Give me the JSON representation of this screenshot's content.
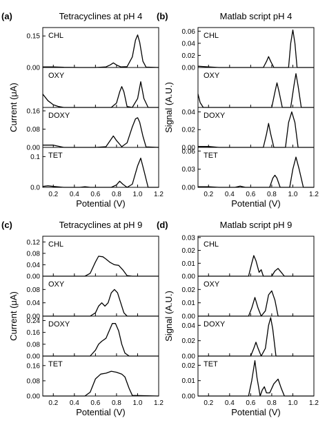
{
  "chart_data": [
    {
      "type": "line",
      "panel_letter": "(a)",
      "title": "Tetracyclines at pH 4",
      "xlabel": "Potential (V)",
      "ylabel": "Current (μA)",
      "xlim": [
        0.1,
        1.2
      ],
      "xticks": [
        "0.2",
        "0.4",
        "0.6",
        "0.8",
        "1.0",
        "1.2"
      ],
      "subplots": [
        {
          "label": "CHL",
          "ylim": [
            0,
            0.19
          ],
          "yticks": [
            "0.15",
            "0.00"
          ],
          "x": [
            0.1,
            0.2,
            0.3,
            0.45,
            0.6,
            0.7,
            0.74,
            0.77,
            0.8,
            0.84,
            0.9,
            0.95,
            0.98,
            1.0,
            1.02,
            1.05,
            1.08,
            1.2
          ],
          "y": [
            0.003,
            0.003,
            0.001,
            0.0,
            0.0,
            0.003,
            0.012,
            0.022,
            0.012,
            0.003,
            0.004,
            0.05,
            0.13,
            0.155,
            0.12,
            0.03,
            0.002,
            0.0
          ]
        },
        {
          "label": "OXY",
          "ylim": [
            0,
            0.09
          ],
          "yticks": [],
          "x": [
            0.1,
            0.15,
            0.2,
            0.25,
            0.3,
            0.5,
            0.75,
            0.8,
            0.83,
            0.85,
            0.87,
            0.9,
            0.95,
            1.0,
            1.03,
            1.06,
            1.1,
            1.2
          ],
          "y": [
            0.03,
            0.015,
            0.006,
            0.002,
            0.0,
            0.0,
            0.0,
            0.01,
            0.035,
            0.047,
            0.035,
            0.002,
            0.0,
            0.02,
            0.058,
            0.02,
            0.0,
            0.0
          ]
        },
        {
          "label": "DOXY",
          "ylim": [
            0,
            0.175
          ],
          "yticks": [
            "0.16",
            "0.08",
            "0.00"
          ],
          "x": [
            0.1,
            0.2,
            0.3,
            0.6,
            0.7,
            0.74,
            0.77,
            0.8,
            0.85,
            0.9,
            0.95,
            0.98,
            1.0,
            1.02,
            1.05,
            1.08,
            1.2
          ],
          "y": [
            0.01,
            0.01,
            0.0,
            0.0,
            0.003,
            0.03,
            0.05,
            0.03,
            0.003,
            0.02,
            0.09,
            0.125,
            0.13,
            0.11,
            0.05,
            0.002,
            0.0
          ]
        },
        {
          "label": "TET",
          "ylim": [
            0,
            0.13
          ],
          "yticks": [
            "0.1",
            "0.0"
          ],
          "x": [
            0.1,
            0.15,
            0.2,
            0.3,
            0.45,
            0.5,
            0.55,
            0.6,
            0.75,
            0.8,
            0.83,
            0.86,
            0.9,
            0.95,
            1.0,
            1.03,
            1.06,
            1.1,
            1.2
          ],
          "y": [
            0.003,
            0.005,
            0.003,
            0.0,
            0.0,
            0.002,
            0.0,
            0.0,
            0.0,
            0.008,
            0.02,
            0.01,
            0.0,
            0.01,
            0.07,
            0.095,
            0.055,
            0.0,
            0.0
          ]
        }
      ]
    },
    {
      "type": "line",
      "panel_letter": "(b)",
      "title": "Matlab script pH 4",
      "xlabel": "Potential (V)",
      "ylabel": "Signal (A.U.)",
      "xlim": [
        0.1,
        1.2
      ],
      "xticks": [
        "0.2",
        "0.4",
        "0.6",
        "0.8",
        "1.0",
        "1.2"
      ],
      "subplots": [
        {
          "label": "CHL",
          "ylim": [
            0,
            0.066
          ],
          "yticks": [
            "0.06",
            "0.04",
            "0.02",
            "0.00"
          ],
          "x": [
            0.1,
            0.2,
            0.3,
            0.72,
            0.75,
            0.77,
            0.79,
            0.82,
            0.96,
            0.98,
            1.0,
            1.02,
            1.04,
            1.2
          ],
          "y": [
            0.002,
            0.001,
            0.0,
            0.0,
            0.01,
            0.018,
            0.01,
            0.0,
            0.0,
            0.04,
            0.062,
            0.04,
            0.0,
            0.0
          ]
        },
        {
          "label": "OXY",
          "ylim": [
            0,
            0.065
          ],
          "yticks": [],
          "x": [
            0.1,
            0.12,
            0.15,
            0.2,
            0.8,
            0.83,
            0.85,
            0.87,
            0.9,
            0.98,
            1.01,
            1.03,
            1.05,
            1.08,
            1.2
          ],
          "y": [
            0.022,
            0.008,
            0.0,
            0.0,
            0.0,
            0.025,
            0.04,
            0.025,
            0.0,
            0.0,
            0.035,
            0.055,
            0.035,
            0.0,
            0.0
          ]
        },
        {
          "label": "DOXY",
          "ylim": [
            0,
            0.045
          ],
          "yticks": [
            "0.04",
            "0.02",
            "0.00"
          ],
          "x": [
            0.1,
            0.2,
            0.3,
            0.72,
            0.75,
            0.77,
            0.79,
            0.82,
            0.93,
            0.96,
            0.99,
            1.02,
            1.05,
            1.2
          ],
          "y": [
            0.001,
            0.001,
            0.0,
            0.0,
            0.015,
            0.027,
            0.015,
            0.0,
            0.0,
            0.028,
            0.04,
            0.028,
            0.0,
            0.0
          ]
        },
        {
          "label": "TET",
          "ylim": [
            0,
            0.066
          ],
          "yticks": [
            "0.06",
            "0.03",
            "0.00"
          ],
          "x": [
            0.1,
            0.2,
            0.3,
            0.45,
            0.5,
            0.55,
            0.78,
            0.81,
            0.83,
            0.85,
            0.88,
            0.97,
            1.0,
            1.03,
            1.06,
            1.1,
            1.2
          ],
          "y": [
            0.001,
            0.001,
            0.0,
            0.0,
            0.002,
            0.0,
            0.0,
            0.015,
            0.02,
            0.015,
            0.0,
            0.0,
            0.03,
            0.05,
            0.03,
            0.0,
            0.0
          ]
        }
      ]
    },
    {
      "type": "line",
      "panel_letter": "(c)",
      "title": "Tetracyclines at pH 9",
      "xlabel": "Potential (V)",
      "ylabel": "Current (μA)",
      "xlim": [
        0.1,
        1.2
      ],
      "xticks": [
        "0.2",
        "0.4",
        "0.6",
        "0.8",
        "1.0",
        "1.2"
      ],
      "subplots": [
        {
          "label": "CHL",
          "ylim": [
            0,
            0.14
          ],
          "yticks": [
            "0.12",
            "0.08",
            "0.04",
            "0.00"
          ],
          "x": [
            0.1,
            0.5,
            0.55,
            0.6,
            0.63,
            0.67,
            0.7,
            0.74,
            0.78,
            0.82,
            0.86,
            0.9,
            0.95,
            1.2
          ],
          "y": [
            0.0,
            0.0,
            0.01,
            0.05,
            0.07,
            0.068,
            0.06,
            0.048,
            0.04,
            0.038,
            0.022,
            0.002,
            0.0,
            0.0
          ]
        },
        {
          "label": "OXY",
          "ylim": [
            0,
            0.12
          ],
          "yticks": [
            "0.08",
            "0.04",
            "0.00"
          ],
          "x": [
            0.1,
            0.55,
            0.6,
            0.63,
            0.66,
            0.69,
            0.72,
            0.75,
            0.78,
            0.81,
            0.84,
            0.87,
            0.9,
            1.2
          ],
          "y": [
            0.0,
            0.0,
            0.01,
            0.03,
            0.04,
            0.03,
            0.04,
            0.07,
            0.08,
            0.07,
            0.04,
            0.01,
            0.0,
            0.0
          ]
        },
        {
          "label": "DOXY",
          "ylim": [
            0,
            0.27
          ],
          "yticks": [
            "0.24",
            "0.16",
            "0.08",
            "0.00"
          ],
          "x": [
            0.1,
            0.55,
            0.6,
            0.63,
            0.66,
            0.7,
            0.73,
            0.76,
            0.79,
            0.82,
            0.85,
            0.88,
            0.92,
            1.2
          ],
          "y": [
            0.0,
            0.0,
            0.04,
            0.08,
            0.1,
            0.12,
            0.17,
            0.22,
            0.22,
            0.17,
            0.08,
            0.02,
            0.0,
            0.0
          ]
        },
        {
          "label": "TET",
          "ylim": [
            0,
            0.21
          ],
          "yticks": [
            "0.16",
            "0.08",
            "0.00"
          ],
          "x": [
            0.1,
            0.5,
            0.55,
            0.6,
            0.65,
            0.7,
            0.75,
            0.8,
            0.85,
            0.88,
            0.92,
            0.95,
            1.2
          ],
          "y": [
            0.0,
            0.0,
            0.02,
            0.09,
            0.115,
            0.12,
            0.13,
            0.125,
            0.115,
            0.1,
            0.04,
            0.003,
            0.0
          ]
        }
      ]
    },
    {
      "type": "line",
      "panel_letter": "(d)",
      "title": "Matlab script pH 9",
      "xlabel": "Potential (V)",
      "ylabel": "Signal (A.U.)",
      "xlim": [
        0.1,
        1.2
      ],
      "xticks": [
        "0.2",
        "0.4",
        "0.6",
        "0.8",
        "1.0",
        "1.2"
      ],
      "subplots": [
        {
          "label": "CHL",
          "ylim": [
            0,
            0.031
          ],
          "yticks": [
            "0.03",
            "0.02",
            "0.01",
            "0.00"
          ],
          "x": [
            0.1,
            0.58,
            0.61,
            0.63,
            0.65,
            0.68,
            0.7,
            0.72,
            0.75,
            0.8,
            0.83,
            0.86,
            0.89,
            0.92,
            1.2
          ],
          "y": [
            0.0,
            0.0,
            0.01,
            0.016,
            0.012,
            0.003,
            0.005,
            0.0,
            0.0,
            0.0,
            0.004,
            0.006,
            0.003,
            0.0,
            0.0
          ]
        },
        {
          "label": "OXY",
          "ylim": [
            0,
            0.03
          ],
          "yticks": [
            "0.02",
            "0.01",
            "0.00"
          ],
          "x": [
            0.1,
            0.58,
            0.61,
            0.64,
            0.67,
            0.7,
            0.74,
            0.77,
            0.8,
            0.83,
            0.86,
            1.2
          ],
          "y": [
            0.0,
            0.0,
            0.006,
            0.014,
            0.006,
            0.0,
            0.004,
            0.016,
            0.019,
            0.012,
            0.0,
            0.0
          ]
        },
        {
          "label": "DOXY",
          "ylim": [
            0,
            0.052
          ],
          "yticks": [
            "0.04",
            "0.02",
            "0.00"
          ],
          "x": [
            0.1,
            0.6,
            0.63,
            0.65,
            0.67,
            0.7,
            0.74,
            0.77,
            0.79,
            0.81,
            0.84,
            1.2
          ],
          "y": [
            0.0,
            0.0,
            0.01,
            0.018,
            0.01,
            0.0,
            0.01,
            0.04,
            0.05,
            0.035,
            0.0,
            0.0
          ]
        },
        {
          "label": "TET",
          "ylim": [
            0,
            0.026
          ],
          "yticks": [
            "0.02",
            "0.01",
            "0.00"
          ],
          "x": [
            0.1,
            0.58,
            0.61,
            0.64,
            0.66,
            0.69,
            0.71,
            0.73,
            0.75,
            0.78,
            0.82,
            0.86,
            0.89,
            0.92,
            1.2
          ],
          "y": [
            0.0,
            0.0,
            0.01,
            0.023,
            0.012,
            0.0,
            0.004,
            0.006,
            0.002,
            0.002,
            0.008,
            0.011,
            0.005,
            0.0,
            0.0
          ]
        }
      ]
    }
  ]
}
